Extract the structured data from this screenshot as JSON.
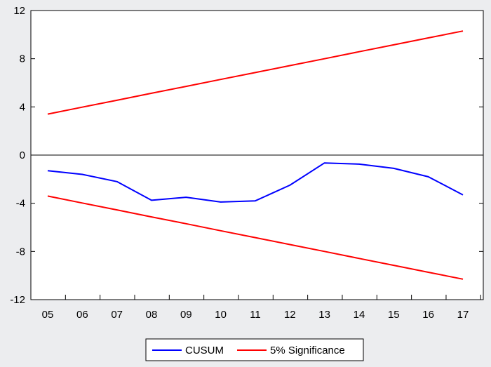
{
  "chart_data": {
    "type": "line",
    "title": "",
    "xlabel": "",
    "ylabel": "",
    "categories": [
      "05",
      "06",
      "07",
      "08",
      "09",
      "10",
      "11",
      "12",
      "13",
      "14",
      "15",
      "16",
      "17"
    ],
    "ylim": [
      -12,
      12
    ],
    "yticks": [
      -12,
      -8,
      -4,
      0,
      4,
      8,
      12
    ],
    "ytick_labels": [
      "-12",
      "-8",
      "-4",
      "0",
      "4",
      "8",
      "12"
    ],
    "series": [
      {
        "name": "CUSUM",
        "color": "#0000ff",
        "values": [
          -1.3,
          -1.6,
          -2.2,
          -3.75,
          -3.5,
          -3.9,
          -3.8,
          -2.5,
          -0.65,
          -0.75,
          -1.1,
          -1.8,
          -3.3
        ]
      },
      {
        "name": "5% Significance",
        "color": "#ff0000",
        "values": [
          3.4,
          3.98,
          4.55,
          5.13,
          5.7,
          6.28,
          6.85,
          7.43,
          8.0,
          8.58,
          9.15,
          9.73,
          10.3
        ]
      },
      {
        "name": "",
        "color": "#ff0000",
        "values": [
          -3.4,
          -3.98,
          -4.55,
          -5.13,
          -5.7,
          -6.28,
          -6.85,
          -7.43,
          -8.0,
          -8.58,
          -9.15,
          -9.73,
          -10.3
        ]
      }
    ],
    "zero_line": true,
    "grid": false,
    "legend": {
      "placement": "bottom-center",
      "entries": [
        {
          "label": "CUSUM",
          "color": "#0000ff"
        },
        {
          "label": "5% Significance",
          "color": "#ff0000"
        }
      ]
    }
  }
}
